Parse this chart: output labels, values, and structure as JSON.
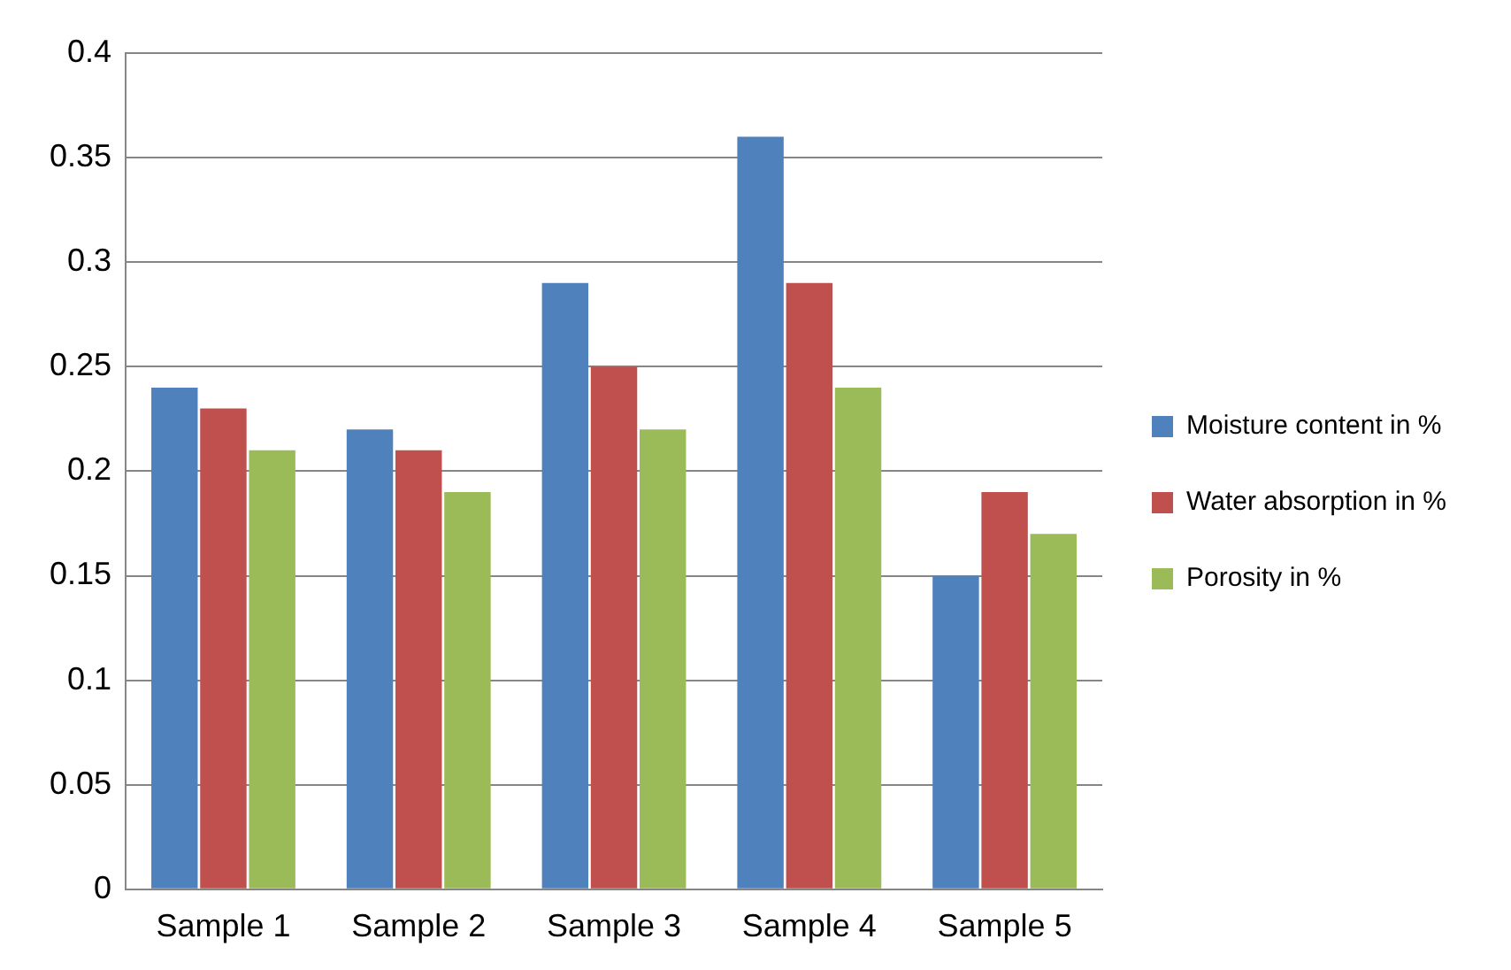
{
  "chart_data": {
    "type": "bar",
    "categories": [
      "Sample 1",
      "Sample 2",
      "Sample 3",
      "Sample 4",
      "Sample 5"
    ],
    "series": [
      {
        "name": "Moisture content in %",
        "color": "#4f81bd",
        "values": [
          0.24,
          0.22,
          0.29,
          0.36,
          0.15
        ]
      },
      {
        "name": "Water absorption in %",
        "color": "#c0504d",
        "values": [
          0.23,
          0.21,
          0.25,
          0.29,
          0.19
        ]
      },
      {
        "name": "Porosity in %",
        "color": "#9bbb59",
        "values": [
          0.21,
          0.19,
          0.22,
          0.24,
          0.17
        ]
      }
    ],
    "ylim": [
      0,
      0.4
    ],
    "yticks": [
      0,
      0.05,
      0.1,
      0.15,
      0.2,
      0.25,
      0.3,
      0.35,
      0.4
    ],
    "grid": "y",
    "legend": "right"
  }
}
